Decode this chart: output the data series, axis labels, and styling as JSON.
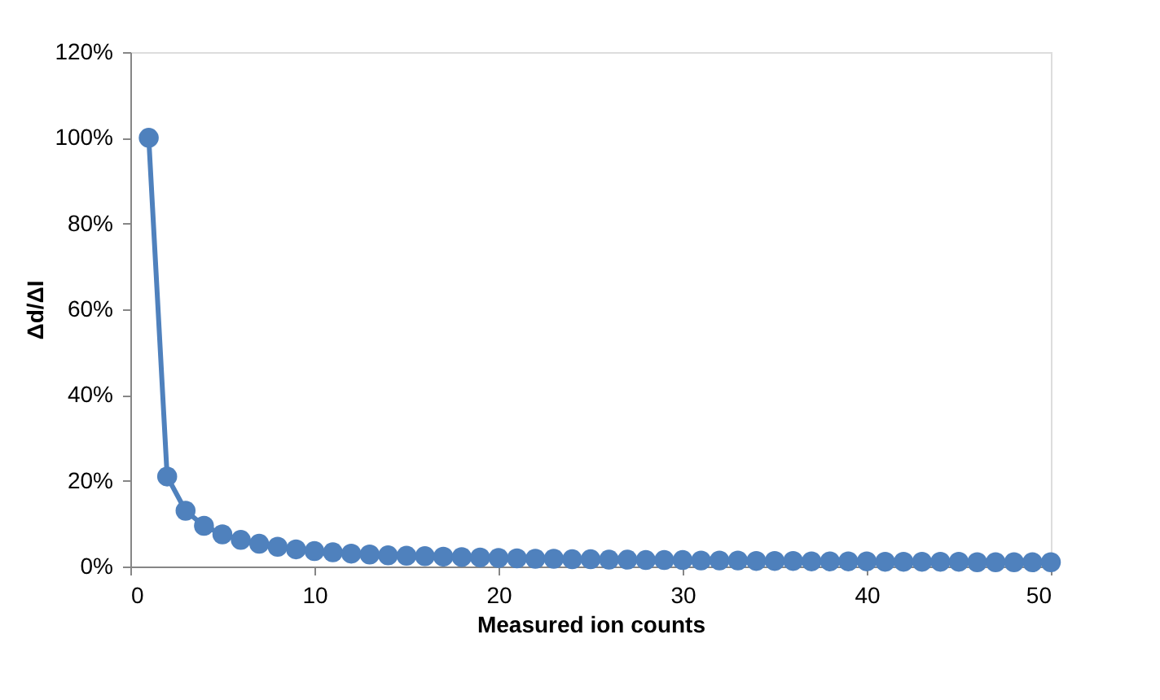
{
  "chart_data": {
    "type": "line",
    "xlabel": "Measured ion counts",
    "ylabel": "Δd/ΔI",
    "x": [
      1,
      2,
      3,
      4,
      5,
      6,
      7,
      8,
      9,
      10,
      11,
      12,
      13,
      14,
      15,
      16,
      17,
      18,
      19,
      20,
      21,
      22,
      23,
      24,
      25,
      26,
      27,
      28,
      29,
      30,
      31,
      32,
      33,
      34,
      35,
      36,
      37,
      38,
      39,
      40,
      41,
      42,
      43,
      44,
      45,
      46,
      47,
      48,
      49,
      50
    ],
    "series": [
      {
        "color": "#4f81bd",
        "values": [
          100,
          21,
          13,
          9.5,
          7.5,
          6.2,
          5.3,
          4.6,
          4.0,
          3.6,
          3.3,
          3.0,
          2.8,
          2.6,
          2.5,
          2.4,
          2.3,
          2.2,
          2.1,
          2.0,
          1.9,
          1.8,
          1.8,
          1.7,
          1.7,
          1.6,
          1.6,
          1.5,
          1.5,
          1.5,
          1.4,
          1.4,
          1.4,
          1.3,
          1.3,
          1.3,
          1.2,
          1.2,
          1.2,
          1.2,
          1.1,
          1.1,
          1.1,
          1.1,
          1.1,
          1.0,
          1.0,
          1.0,
          1.0,
          1.0
        ]
      }
    ],
    "xlim": [
      0,
      50
    ],
    "xticks": [
      0,
      10,
      20,
      30,
      40,
      50
    ],
    "ylim": [
      0,
      120
    ],
    "yticks": [
      {
        "value": 0,
        "label": "0%"
      },
      {
        "value": 20,
        "label": "20%"
      },
      {
        "value": 40,
        "label": "40%"
      },
      {
        "value": 60,
        "label": "60%"
      },
      {
        "value": 80,
        "label": "80%"
      },
      {
        "value": 100,
        "label": "100%"
      },
      {
        "value": 120,
        "label": "120%"
      }
    ],
    "grid": false,
    "marker": "circle",
    "line_style": "solid",
    "legend": false
  }
}
